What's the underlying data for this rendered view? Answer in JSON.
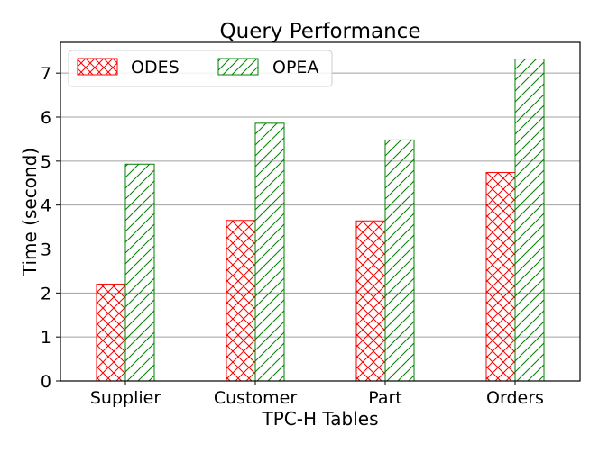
{
  "chart_data": {
    "type": "bar",
    "title": "Query Performance",
    "xlabel": "TPC-H Tables",
    "ylabel": "Time (second)",
    "categories": [
      "Supplier",
      "Customer",
      "Part",
      "Orders"
    ],
    "series": [
      {
        "name": "ODES",
        "values": [
          2.2,
          3.65,
          3.64,
          4.74
        ],
        "color": "#ff0000",
        "hatch": "cross"
      },
      {
        "name": "OPEA",
        "values": [
          4.93,
          5.86,
          5.48,
          7.32
        ],
        "color": "#008000",
        "hatch": "diagonal"
      }
    ],
    "ylim": [
      0,
      7.7
    ],
    "yticks": [
      0,
      1,
      2,
      3,
      4,
      5,
      6,
      7
    ],
    "grid": "horizontal",
    "legend": "top-left"
  }
}
